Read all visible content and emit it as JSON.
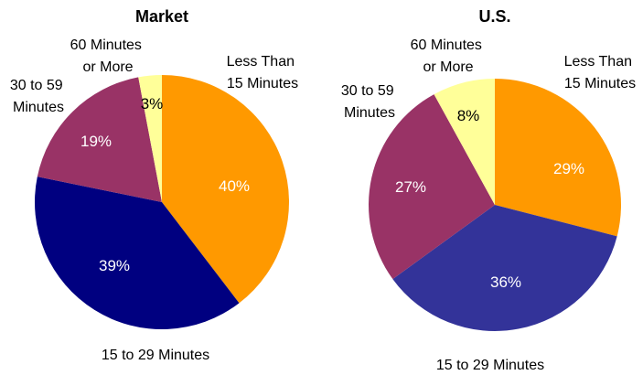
{
  "colors": {
    "less_than_15": "#ff9900",
    "15_to_29_market": "#000080",
    "15_to_29_us": "#333399",
    "30_to_59": "#993366",
    "60_or_more": "#ffff99",
    "label_light": "#ffffff",
    "label_dark": "#000000"
  },
  "chart_data": [
    {
      "type": "pie",
      "title": "Market",
      "categories": [
        "Less Than 15 Minutes",
        "15 to 29 Minutes",
        "30 to 59 Minutes",
        "60 Minutes or More"
      ],
      "values": [
        40,
        39,
        19,
        3
      ],
      "data_labels": [
        "40%",
        "39%",
        "19%",
        "3%"
      ],
      "category_labels": [
        [
          "Less Than",
          "15 Minutes"
        ],
        [
          "15 to 29 Minutes"
        ],
        [
          "30 to 59",
          "Minutes"
        ],
        [
          "60 Minutes",
          "or More"
        ]
      ]
    },
    {
      "type": "pie",
      "title": "U.S.",
      "categories": [
        "Less Than 15 Minutes",
        "15 to 29 Minutes",
        "30 to 59 Minutes",
        "60 Minutes or More"
      ],
      "values": [
        29,
        36,
        27,
        8
      ],
      "data_labels": [
        "29%",
        "36%",
        "27%",
        "8%"
      ],
      "category_labels": [
        [
          "Less Than",
          "15 Minutes"
        ],
        [
          "15 to 29 Minutes"
        ],
        [
          "30 to 59",
          "Minutes"
        ],
        [
          "60 Minutes",
          "or More"
        ]
      ]
    }
  ]
}
